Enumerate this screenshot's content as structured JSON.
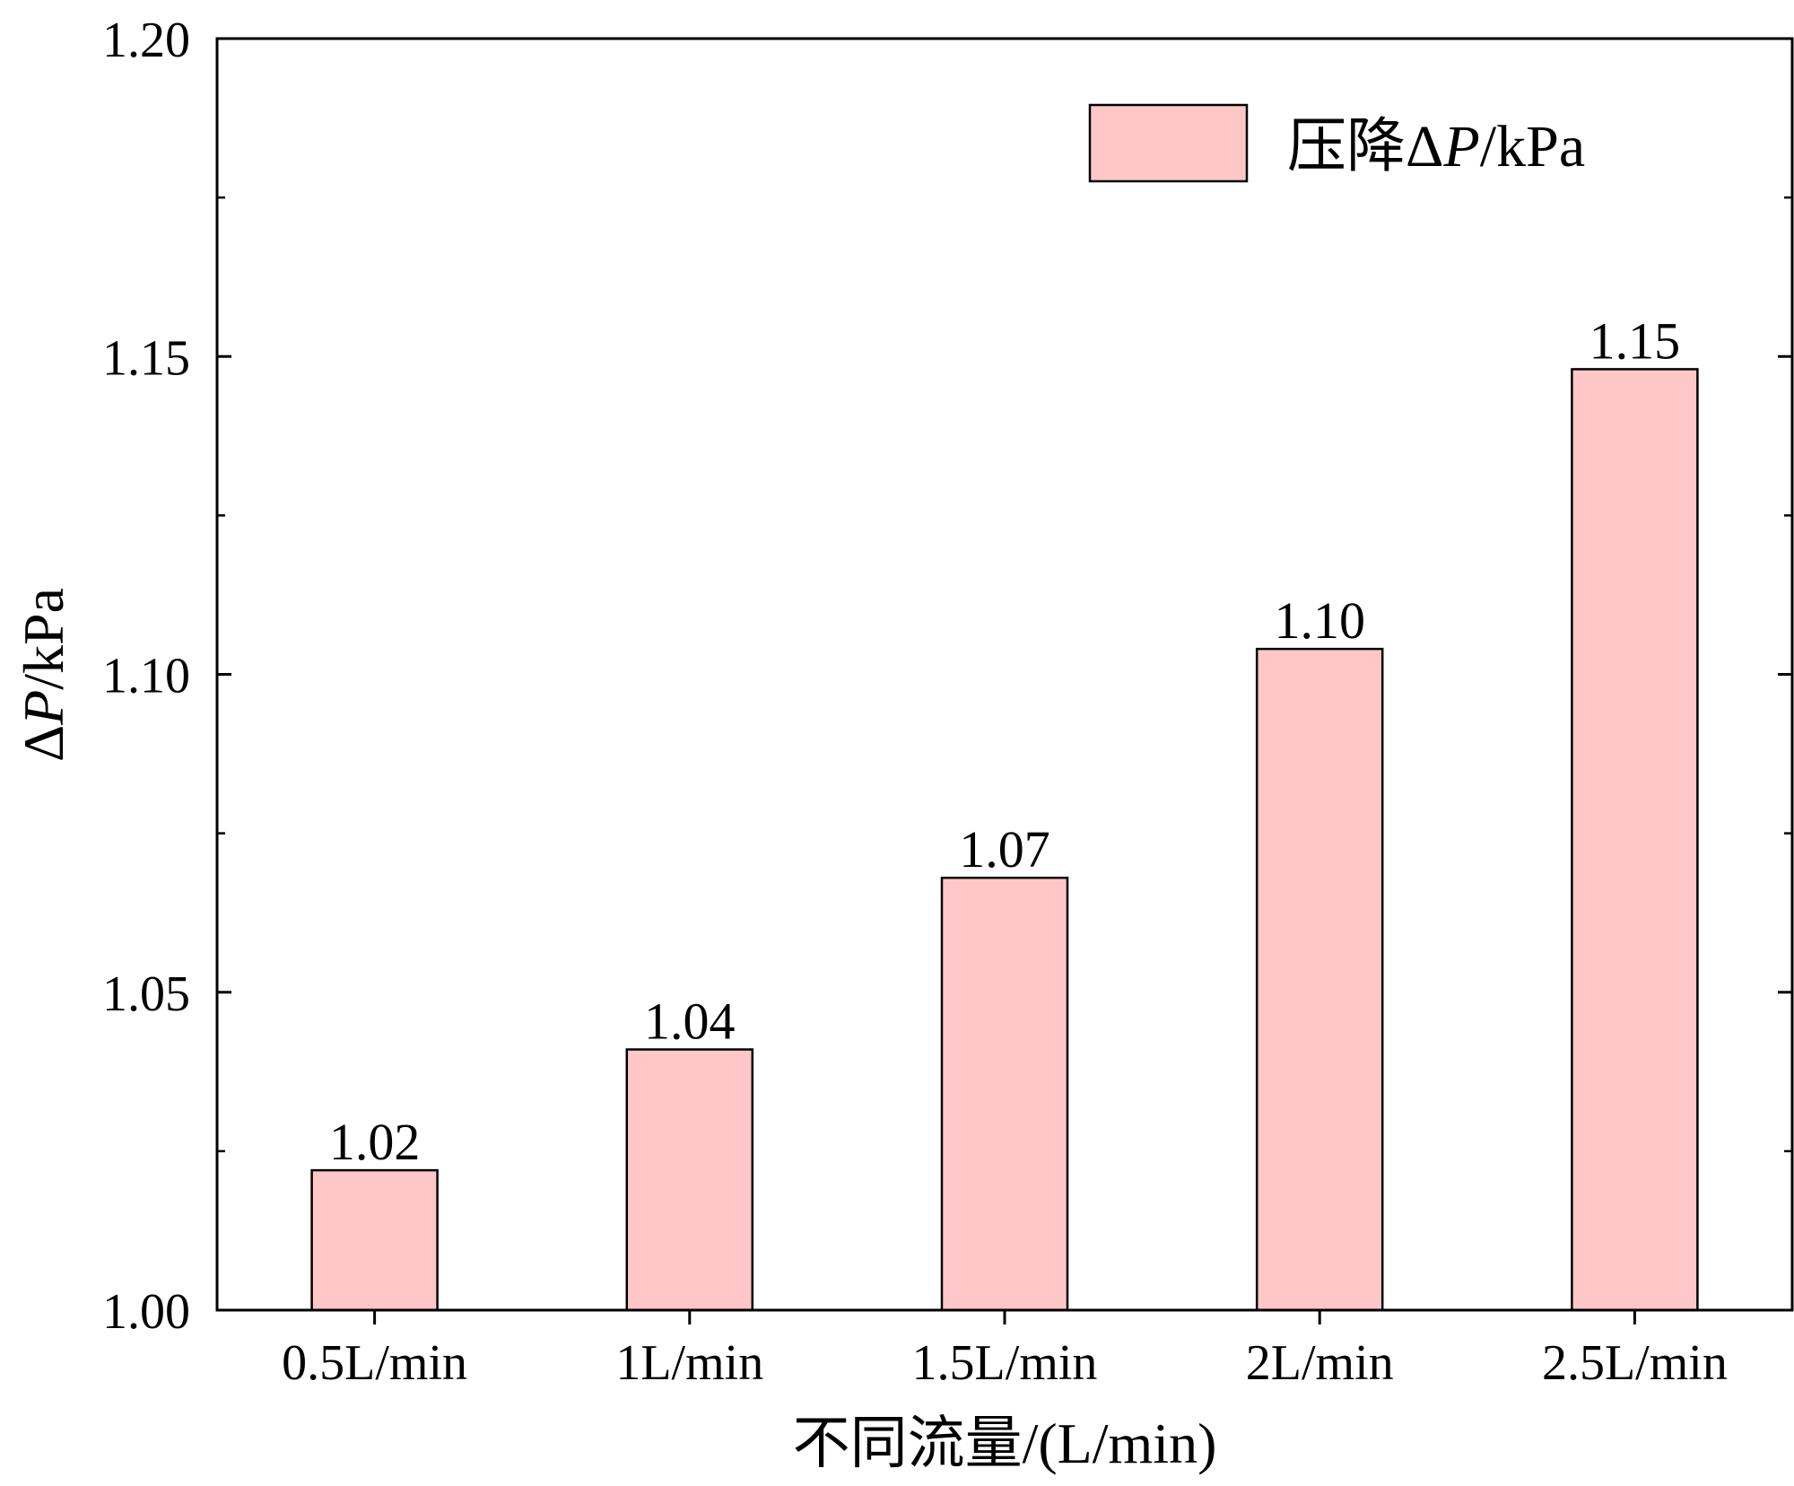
{
  "chart_data": {
    "type": "bar",
    "categories": [
      "0.5L/min",
      "1L/min",
      "1.5L/min",
      "2L/min",
      "2.5L/min"
    ],
    "series": [
      {
        "name": "压降ΔP/kPa",
        "values": [
          1.022,
          1.041,
          1.068,
          1.104,
          1.148
        ],
        "labels": [
          "1.02",
          "1.04",
          "1.07",
          "1.10",
          "1.15"
        ]
      }
    ],
    "xlabel": "不同流量/(L/min)",
    "ylabel": {
      "delta": "Δ",
      "p": "P",
      "unit": "/kPa"
    },
    "ylim": [
      1.0,
      1.2
    ],
    "yticks": [
      "1.00",
      "1.05",
      "1.10",
      "1.15",
      "1.20"
    ],
    "grid": false,
    "legend": {
      "position": "top-right",
      "prefix": "压降Δ",
      "italic": "P",
      "suffix": "/kPa"
    },
    "colors": {
      "bar_fill": "#ffc7c7",
      "bar_stroke": "#000000",
      "axis": "#000000"
    }
  }
}
